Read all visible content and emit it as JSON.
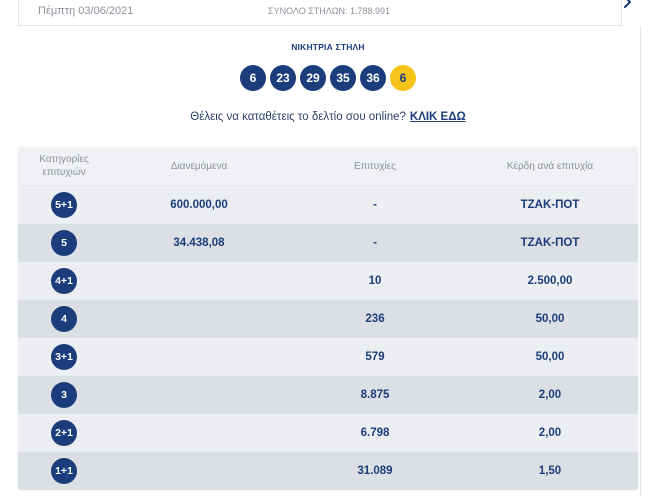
{
  "draw_info": {
    "date": "Πέμπτη 03/06/2021",
    "total_columns": "ΣΥΝΟΛΟ ΣΤΗΛΩΝ: 1.788.991"
  },
  "winning_column": {
    "title": "ΝΙΚΗΤΡΙΑ ΣΤΗΛΗ",
    "numbers": [
      "6",
      "23",
      "29",
      "35",
      "36"
    ],
    "joker": "6"
  },
  "promo": {
    "text": "Θέλεις να καταθέτεις το δελτίο σου online?",
    "link_label": "ΚΛΙΚ ΕΔΩ"
  },
  "table": {
    "headers": {
      "category": "Κατηγορίες επιτυχιών",
      "distributed": "Διανεμόμενα",
      "winners": "Επιτυχίες",
      "prize": "Κέρδη ανά επιτυχία"
    },
    "rows": [
      {
        "category": "5+1",
        "distributed": "600.000,00",
        "winners": "-",
        "prize": "ΤΖΑΚ-ΠΟΤ"
      },
      {
        "category": "5",
        "distributed": "34.438,08",
        "winners": "-",
        "prize": "ΤΖΑΚ-ΠΟΤ"
      },
      {
        "category": "4+1",
        "winners": "10",
        "prize": "2.500,00"
      },
      {
        "category": "4",
        "winners": "236",
        "prize": "50,00"
      },
      {
        "category": "3+1",
        "winners": "579",
        "prize": "50,00"
      },
      {
        "category": "3",
        "winners": "8.875",
        "prize": "2,00"
      },
      {
        "category": "2+1",
        "winners": "6.798",
        "prize": "2,00"
      },
      {
        "category": "1+1",
        "winners": "31.089",
        "prize": "1,50"
      }
    ]
  },
  "icons": {
    "next_draw": "chevron-right-icon"
  },
  "colors": {
    "navy": "#1b3d7b",
    "joker": "#f6c31a",
    "muted": "#8c919a",
    "head": "#f0f1f4",
    "row-light": "#eceef2",
    "row-dark": "#dcdfe4"
  }
}
